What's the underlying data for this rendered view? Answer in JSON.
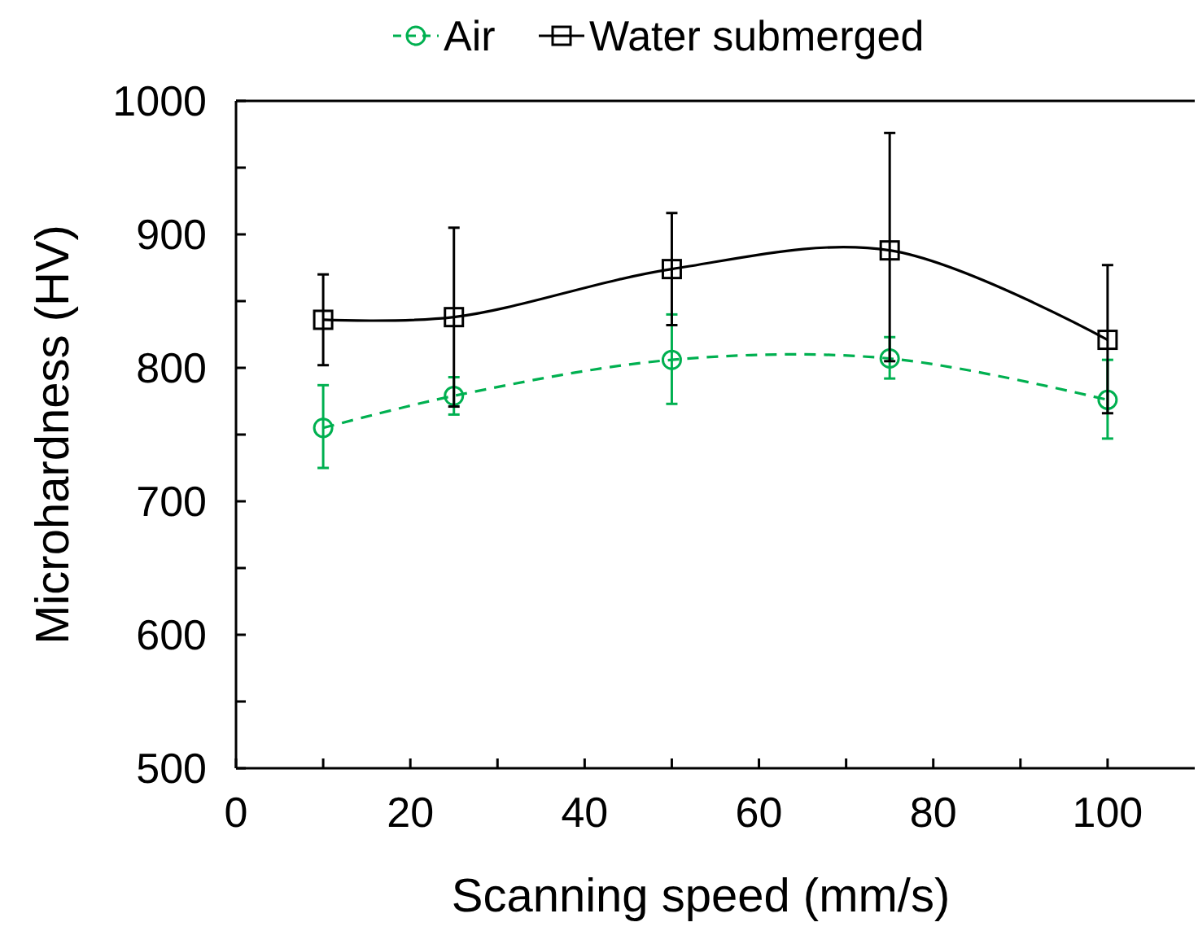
{
  "chart_data": {
    "type": "line",
    "xlabel": "Scanning speed (mm/s)",
    "ylabel": "Microhardness (HV)",
    "x": [
      10,
      25,
      50,
      75,
      100
    ],
    "xlim": [
      0,
      110
    ],
    "xticks": [
      0,
      {
        "value": 10,
        "label": null
      },
      20,
      {
        "value": 30,
        "label": null
      },
      40,
      {
        "value": 50,
        "label": null
      },
      60,
      {
        "value": 70,
        "label": null
      },
      80,
      {
        "value": 90,
        "label": null
      },
      100
    ],
    "ylim": [
      500,
      1000
    ],
    "yticks": [
      500,
      {
        "value": 550,
        "label": null
      },
      600,
      {
        "value": 650,
        "label": null
      },
      700,
      {
        "value": 750,
        "label": null
      },
      800,
      {
        "value": 850,
        "label": null
      },
      900,
      {
        "value": 950,
        "label": null
      },
      1000
    ],
    "grid": false,
    "legend": "top",
    "series": [
      {
        "name": "Air",
        "color": "#00b050",
        "marker": "circle",
        "line_style": "dashed",
        "values": [
          755,
          779,
          806,
          807,
          776
        ],
        "errors": [
          [
            725,
            787
          ],
          [
            765,
            793
          ],
          [
            773,
            840
          ],
          [
            792,
            823
          ],
          [
            747,
            806
          ]
        ]
      },
      {
        "name": "Water submerged",
        "color": "#000000",
        "marker": "square",
        "line_style": "solid",
        "values": [
          836,
          838,
          874,
          888,
          821
        ],
        "errors": [
          [
            802,
            870
          ],
          [
            771,
            905
          ],
          [
            832,
            916
          ],
          [
            805,
            976
          ],
          [
            766,
            877
          ]
        ]
      }
    ]
  }
}
